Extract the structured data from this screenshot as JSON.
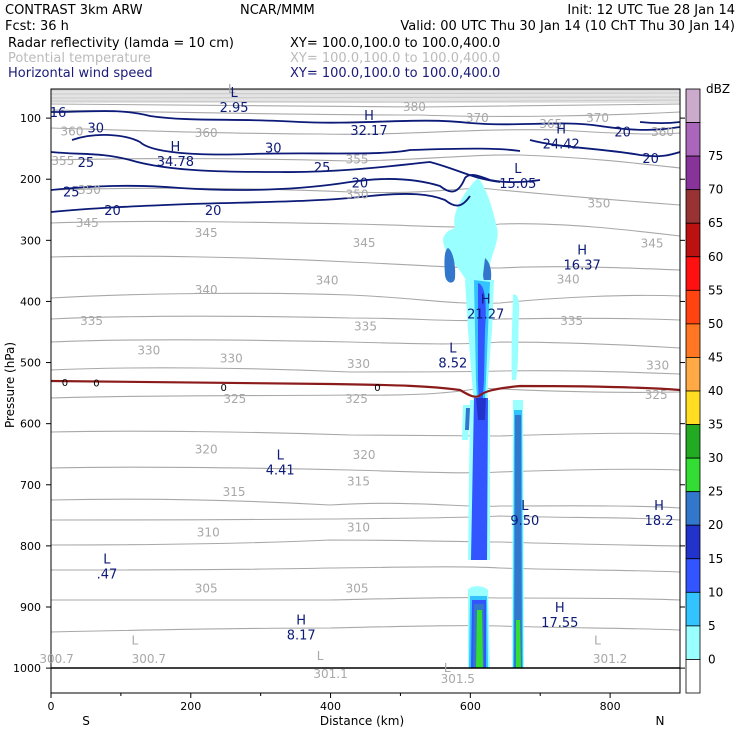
{
  "header": {
    "left_line1": "CONTRAST  3km ARW",
    "center_line1": "NCAR/MMM",
    "init": "Init: 12 UTC Tue 28 Jan 14",
    "fcst": "Fcst:   36 h",
    "valid": "Valid: 00 UTC Thu 30 Jan 14 (10 ChT Thu 30 Jan 14)",
    "fields": [
      {
        "name": "Radar reflectivity (lamda = 10 cm)",
        "xy": "XY= 100.0,100.0 to 100.0,400.0",
        "color": "#000000"
      },
      {
        "name": "Potential temperature",
        "xy": "XY= 100.0,100.0 to 100.0,400.0",
        "color": "#bbbbbb"
      },
      {
        "name": "Horizontal wind speed",
        "xy": "XY= 100.0,100.0 to 100.0,400.0",
        "color": "#1a1a7a"
      }
    ]
  },
  "colors": {
    "wind": "#0c1a78",
    "theta": "#a8a8a8",
    "freezing": "#8b1a1a"
  },
  "chart_data": {
    "type": "cross-section",
    "xlabel": "Distance (km)",
    "ylabel": "Pressure (hPa)",
    "xlim": [
      0,
      900
    ],
    "ylim": [
      100,
      1050
    ],
    "xticks": [
      0,
      200,
      400,
      600,
      800
    ],
    "yticks": [
      100,
      200,
      300,
      400,
      500,
      600,
      700,
      800,
      900,
      1000
    ],
    "x_end_labels": {
      "left": "S",
      "right": "N"
    },
    "colorbar": {
      "unit": "dBZ",
      "levels": [
        "0",
        "5",
        "10",
        "15",
        "20",
        "25",
        "30",
        "35",
        "40",
        "45",
        "50",
        "55",
        "60",
        "65",
        "70",
        "75"
      ],
      "colors": [
        "#ffffff",
        "#99ffff",
        "#33c4ff",
        "#3355ff",
        "#2233cc",
        "#3377cc",
        "#33dd33",
        "#22aa22",
        "#ffdd22",
        "#ffaa44",
        "#ff7722",
        "#ff4411",
        "#ff1111",
        "#bb1111",
        "#993333",
        "#883399",
        "#aa66bb",
        "#ccaacc"
      ]
    },
    "wind_labels": [
      {
        "text": "16",
        "x": 10,
        "p": 90
      },
      {
        "text": "30",
        "x": 64,
        "p": 115
      },
      {
        "text": "30",
        "x": 318,
        "p": 148
      },
      {
        "text": "25",
        "x": 50,
        "p": 172
      },
      {
        "text": "25",
        "x": 388,
        "p": 180
      },
      {
        "text": "20",
        "x": 442,
        "p": 205
      },
      {
        "text": "25",
        "x": 29,
        "p": 220
      },
      {
        "text": "20",
        "x": 88,
        "p": 250
      },
      {
        "text": "20",
        "x": 232,
        "p": 250
      },
      {
        "text": "20",
        "x": 818,
        "p": 122
      },
      {
        "text": "20",
        "x": 858,
        "p": 165
      }
    ],
    "wind_extrema": [
      {
        "type": "L",
        "value": "2.95",
        "x": 262,
        "p": 72
      },
      {
        "type": "H",
        "value": "32.17",
        "x": 455,
        "p": 110
      },
      {
        "type": "H",
        "value": "34.78",
        "x": 178,
        "p": 160
      },
      {
        "type": "H",
        "value": "24.42",
        "x": 730,
        "p": 132
      },
      {
        "type": "L",
        "value": "15.05",
        "x": 668,
        "p": 196
      },
      {
        "type": "H",
        "value": "16.37",
        "x": 760,
        "p": 330
      },
      {
        "type": "H",
        "value": "21.27",
        "x": 622,
        "p": 410
      },
      {
        "type": "L",
        "value": "8.52",
        "x": 575,
        "p": 490
      },
      {
        "type": "L",
        "value": "4.41",
        "x": 328,
        "p": 665
      },
      {
        "type": "L",
        "value": "9.50",
        "x": 678,
        "p": 748
      },
      {
        "type": "H",
        "value": "18.2",
        "x": 870,
        "p": 748
      },
      {
        "type": "L",
        "value": ".47",
        "x": 80,
        "p": 835
      },
      {
        "type": "H",
        "value": "17.55",
        "x": 728,
        "p": 915
      },
      {
        "type": "H",
        "value": "8.17",
        "x": 358,
        "p": 935
      }
    ],
    "theta_labels": [
      {
        "text": "380",
        "x": 520,
        "p": 82
      },
      {
        "text": "370",
        "x": 610,
        "p": 100
      },
      {
        "text": "365",
        "x": 715,
        "p": 110
      },
      {
        "text": "370",
        "x": 782,
        "p": 100
      },
      {
        "text": "360",
        "x": 222,
        "p": 124
      },
      {
        "text": "360",
        "x": 30,
        "p": 122
      },
      {
        "text": "360",
        "x": 875,
        "p": 123
      },
      {
        "text": "355",
        "x": 17,
        "p": 170
      },
      {
        "text": "355",
        "x": 438,
        "p": 168
      },
      {
        "text": "350",
        "x": 55,
        "p": 218
      },
      {
        "text": "350",
        "x": 438,
        "p": 225
      },
      {
        "text": "350",
        "x": 784,
        "p": 240
      },
      {
        "text": "345",
        "x": 52,
        "p": 272
      },
      {
        "text": "345",
        "x": 222,
        "p": 288
      },
      {
        "text": "345",
        "x": 448,
        "p": 304
      },
      {
        "text": "345",
        "x": 860,
        "p": 305
      },
      {
        "text": "340",
        "x": 222,
        "p": 381
      },
      {
        "text": "340",
        "x": 395,
        "p": 366
      },
      {
        "text": "340",
        "x": 740,
        "p": 364
      },
      {
        "text": "335",
        "x": 58,
        "p": 432
      },
      {
        "text": "335",
        "x": 450,
        "p": 441
      },
      {
        "text": "335",
        "x": 745,
        "p": 432
      },
      {
        "text": "330",
        "x": 140,
        "p": 480
      },
      {
        "text": "330",
        "x": 258,
        "p": 493
      },
      {
        "text": "330",
        "x": 440,
        "p": 502
      },
      {
        "text": "330",
        "x": 868,
        "p": 505
      },
      {
        "text": "325",
        "x": 263,
        "p": 560
      },
      {
        "text": "325",
        "x": 437,
        "p": 560
      },
      {
        "text": "325",
        "x": 866,
        "p": 553
      },
      {
        "text": "320",
        "x": 222,
        "p": 642
      },
      {
        "text": "320",
        "x": 448,
        "p": 651
      },
      {
        "text": "315",
        "x": 262,
        "p": 712
      },
      {
        "text": "315",
        "x": 440,
        "p": 695
      },
      {
        "text": "310",
        "x": 225,
        "p": 778
      },
      {
        "text": "310",
        "x": 440,
        "p": 770
      },
      {
        "text": "305",
        "x": 222,
        "p": 870
      },
      {
        "text": "305",
        "x": 438,
        "p": 870
      },
      {
        "text": "300.7",
        "x": 8,
        "p": 985
      },
      {
        "text": "300.7",
        "x": 140,
        "p": 985
      },
      {
        "text": "301.1",
        "x": 400,
        "p": 1010
      },
      {
        "text": "301.5",
        "x": 582,
        "p": 1018
      },
      {
        "text": "301.2",
        "x": 800,
        "p": 985
      }
    ],
    "theta_extrema_L": [
      {
        "x": 120,
        "p": 955
      },
      {
        "x": 385,
        "p": 980
      },
      {
        "x": 567,
        "p": 1000
      },
      {
        "x": 782,
        "p": 955
      },
      {
        "x": 258,
        "p": 52
      }
    ],
    "freezing_level_labels": [
      {
        "text": "0",
        "x": 20,
        "p": 532
      },
      {
        "text": "0",
        "x": 65,
        "p": 533
      },
      {
        "text": "0",
        "x": 247,
        "p": 540
      },
      {
        "text": "0",
        "x": 467,
        "p": 540
      }
    ]
  }
}
